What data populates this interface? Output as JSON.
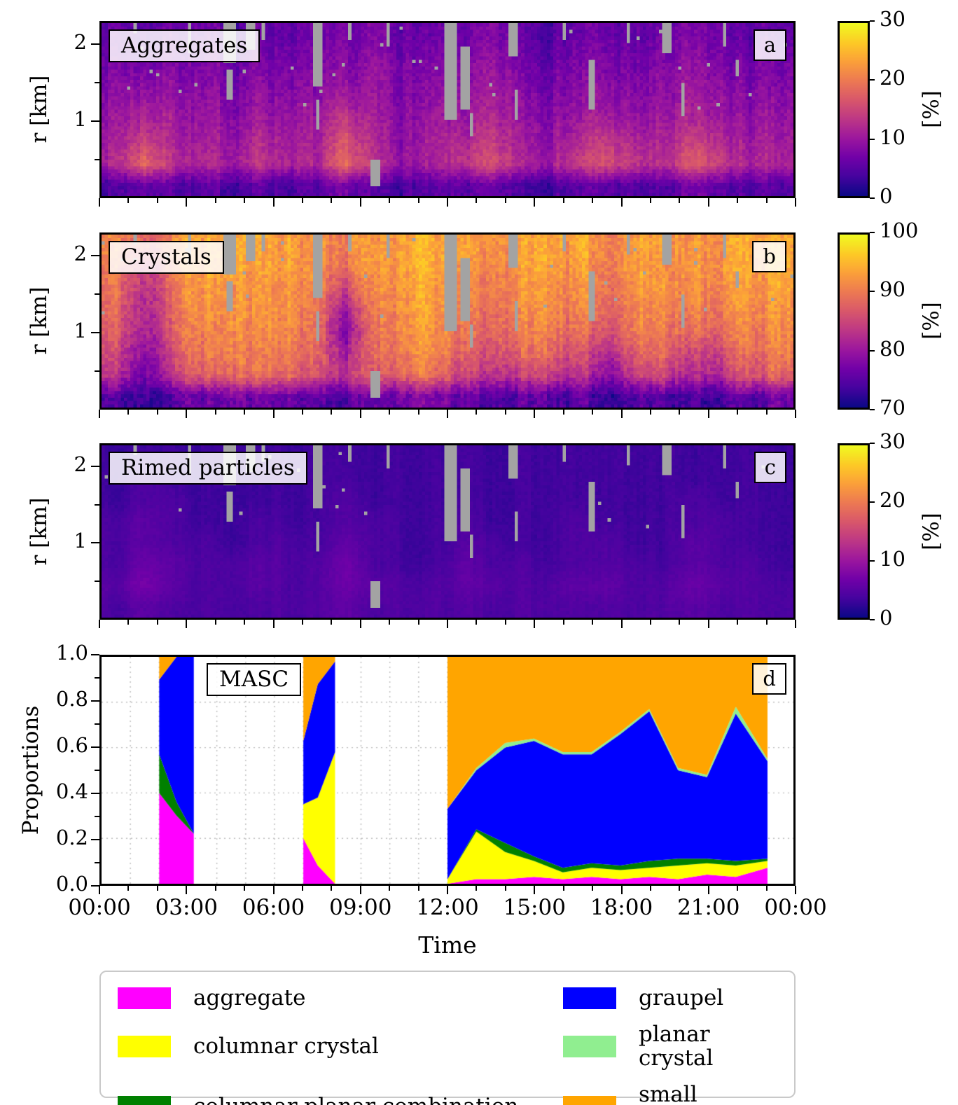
{
  "figure": {
    "background": "#ffffff",
    "nan_color": "#a3a3a3",
    "colormap": {
      "name": "plasma",
      "positions": [
        0,
        0.111,
        0.222,
        0.333,
        0.444,
        0.556,
        0.667,
        0.778,
        0.889,
        1
      ],
      "colors": [
        "#0d0887",
        "#46039f",
        "#7201a8",
        "#9c179e",
        "#bd3786",
        "#d8576b",
        "#ed7953",
        "#fb9f3a",
        "#fdca26",
        "#f0f921"
      ]
    },
    "time_axis": {
      "label": "Time",
      "range_hours": [
        0,
        24
      ],
      "tick_hours": [
        0,
        3,
        6,
        9,
        12,
        15,
        18,
        21,
        24
      ],
      "tick_labels": [
        "00:00",
        "03:00",
        "06:00",
        "09:00",
        "12:00",
        "15:00",
        "18:00",
        "21:00",
        "00:00"
      ]
    },
    "missing_data_patches_hours_km": [
      [
        1.1,
        1.25,
        2.15,
        2.3
      ],
      [
        3.05,
        3.2,
        1.9,
        2.3
      ],
      [
        4.25,
        4.65,
        1.75,
        2.3
      ],
      [
        4.3,
        4.5,
        1.3,
        1.7
      ],
      [
        5.0,
        5.35,
        1.95,
        2.3
      ],
      [
        5.6,
        5.75,
        2.1,
        2.3
      ],
      [
        7.35,
        7.7,
        1.45,
        2.3
      ],
      [
        7.45,
        7.6,
        0.9,
        1.3
      ],
      [
        8.6,
        8.75,
        2.1,
        2.3
      ],
      [
        9.3,
        9.65,
        0.15,
        0.5
      ],
      [
        9.9,
        10.05,
        2.0,
        2.3
      ],
      [
        11.85,
        12.25,
        1.0,
        2.3
      ],
      [
        12.4,
        12.7,
        1.15,
        2.0
      ],
      [
        12.75,
        12.9,
        0.8,
        1.1
      ],
      [
        14.1,
        14.45,
        1.85,
        2.3
      ],
      [
        14.3,
        14.45,
        1.0,
        1.4
      ],
      [
        16.05,
        16.2,
        2.1,
        2.3
      ],
      [
        16.9,
        17.15,
        1.15,
        1.8
      ],
      [
        18.2,
        18.35,
        2.05,
        2.3
      ],
      [
        19.4,
        19.75,
        1.9,
        2.3
      ],
      [
        20.15,
        20.3,
        1.05,
        1.5
      ],
      [
        21.5,
        21.65,
        2.0,
        2.3
      ],
      [
        22.0,
        22.1,
        1.6,
        1.8
      ]
    ]
  },
  "chart_data": [
    {
      "type": "heatmap",
      "panel": "a",
      "title": "Aggregates",
      "ylabel": "r [km]",
      "r_range_km": [
        0,
        2.3
      ],
      "yticks_km": [
        1,
        2
      ],
      "time_range_hours": [
        0,
        24
      ],
      "colorbar": {
        "label": "[%]",
        "vmin": 0,
        "vmax": 30,
        "ticks": [
          0,
          10,
          20,
          30
        ]
      },
      "grid_rows_top_to_bottom_percent": [
        [
          6,
          5,
          7,
          6,
          5,
          6,
          6,
          5,
          6,
          7,
          6,
          5,
          6,
          7,
          6,
          5,
          6,
          6,
          5,
          6,
          7,
          6,
          5,
          5
        ],
        [
          7,
          6,
          8,
          7,
          6,
          7,
          7,
          6,
          7,
          8,
          7,
          6,
          7,
          8,
          7,
          6,
          7,
          7,
          6,
          7,
          8,
          7,
          6,
          6
        ],
        [
          8,
          8,
          9,
          7,
          7,
          8,
          8,
          7,
          8,
          9,
          8,
          7,
          8,
          9,
          8,
          7,
          8,
          8,
          7,
          8,
          9,
          8,
          7,
          7
        ],
        [
          9,
          10,
          10,
          8,
          8,
          9,
          9,
          8,
          10,
          9,
          8,
          8,
          9,
          10,
          9,
          8,
          9,
          9,
          8,
          9,
          10,
          9,
          8,
          8
        ],
        [
          10,
          12,
          11,
          9,
          9,
          10,
          10,
          9,
          13,
          10,
          9,
          9,
          10,
          11,
          10,
          9,
          10,
          11,
          9,
          10,
          11,
          10,
          9,
          9
        ],
        [
          11,
          15,
          12,
          10,
          10,
          12,
          11,
          10,
          16,
          11,
          9,
          10,
          12,
          13,
          11,
          10,
          12,
          14,
          11,
          11,
          14,
          12,
          10,
          10
        ],
        [
          12,
          19,
          13,
          11,
          11,
          13,
          12,
          11,
          18,
          12,
          10,
          10,
          13,
          15,
          12,
          11,
          14,
          16,
          13,
          12,
          17,
          14,
          11,
          11
        ],
        [
          4,
          6,
          5,
          4,
          4,
          5,
          4,
          4,
          6,
          4,
          4,
          4,
          5,
          5,
          4,
          4,
          5,
          5,
          4,
          4,
          6,
          5,
          4,
          4
        ]
      ]
    },
    {
      "type": "heatmap",
      "panel": "b",
      "title": "Crystals",
      "ylabel": "r [km]",
      "r_range_km": [
        0,
        2.3
      ],
      "yticks_km": [
        1,
        2
      ],
      "time_range_hours": [
        0,
        24
      ],
      "colorbar": {
        "label": "[%]",
        "vmin": 70,
        "vmax": 100,
        "ticks": [
          70,
          80,
          90,
          100
        ]
      },
      "grid_rows_top_to_bottom_percent": [
        [
          91,
          87,
          92,
          94,
          93,
          94,
          93,
          92,
          91,
          93,
          94,
          94,
          93,
          92,
          93,
          94,
          93,
          92,
          93,
          94,
          92,
          93,
          94,
          94
        ],
        [
          90,
          84,
          91,
          94,
          93,
          94,
          93,
          92,
          89,
          93,
          94,
          94,
          92,
          91,
          93,
          94,
          92,
          91,
          93,
          93,
          92,
          93,
          94,
          94
        ],
        [
          89,
          82,
          90,
          93,
          92,
          93,
          92,
          91,
          85,
          92,
          93,
          93,
          91,
          90,
          92,
          93,
          91,
          90,
          92,
          93,
          91,
          92,
          93,
          93
        ],
        [
          88,
          81,
          89,
          92,
          92,
          93,
          92,
          90,
          80,
          91,
          93,
          93,
          90,
          89,
          91,
          92,
          90,
          89,
          91,
          92,
          90,
          91,
          92,
          92
        ],
        [
          87,
          80,
          88,
          91,
          91,
          92,
          91,
          89,
          77,
          90,
          92,
          92,
          89,
          88,
          90,
          91,
          88,
          87,
          90,
          91,
          88,
          89,
          91,
          91
        ],
        [
          85,
          78,
          86,
          90,
          90,
          91,
          90,
          88,
          81,
          89,
          91,
          91,
          87,
          86,
          88,
          89,
          85,
          83,
          87,
          89,
          84,
          86,
          89,
          90
        ],
        [
          83,
          76,
          84,
          88,
          88,
          90,
          88,
          86,
          83,
          87,
          89,
          89,
          85,
          83,
          84,
          85,
          82,
          79,
          84,
          86,
          81,
          83,
          87,
          88
        ],
        [
          74,
          72,
          75,
          76,
          76,
          77,
          76,
          75,
          74,
          76,
          77,
          77,
          75,
          74,
          75,
          75,
          74,
          73,
          74,
          75,
          73,
          74,
          75,
          76
        ]
      ]
    },
    {
      "type": "heatmap",
      "panel": "c",
      "title": "Rimed particles",
      "ylabel": "r [km]",
      "r_range_km": [
        0,
        2.3
      ],
      "yticks_km": [
        1,
        2
      ],
      "time_range_hours": [
        0,
        24
      ],
      "colorbar": {
        "label": "[%]",
        "vmin": 0,
        "vmax": 30,
        "ticks": [
          0,
          10,
          20,
          30
        ]
      },
      "grid_rows_top_to_bottom_percent": [
        [
          3,
          3,
          3,
          3,
          3,
          3,
          3,
          3,
          3,
          3,
          3,
          3,
          3,
          3,
          3,
          3,
          3,
          3,
          3,
          3,
          3,
          3,
          3,
          3
        ],
        [
          3,
          4,
          3,
          3,
          3,
          3,
          3,
          3,
          3,
          3,
          3,
          3,
          3,
          3,
          3,
          3,
          3,
          3,
          3,
          3,
          3,
          3,
          3,
          3
        ],
        [
          3,
          4,
          4,
          3,
          3,
          3,
          3,
          3,
          4,
          3,
          3,
          3,
          3,
          3,
          3,
          3,
          3,
          3,
          3,
          3,
          4,
          3,
          3,
          3
        ],
        [
          4,
          5,
          4,
          3,
          3,
          4,
          3,
          3,
          4,
          4,
          3,
          3,
          4,
          3,
          3,
          3,
          4,
          3,
          3,
          3,
          4,
          4,
          3,
          3
        ],
        [
          4,
          5,
          4,
          4,
          3,
          4,
          4,
          3,
          5,
          4,
          3,
          3,
          4,
          4,
          3,
          3,
          4,
          4,
          3,
          3,
          5,
          4,
          3,
          3
        ],
        [
          4,
          6,
          5,
          4,
          4,
          5,
          4,
          4,
          6,
          4,
          3,
          3,
          5,
          4,
          4,
          3,
          4,
          4,
          4,
          3,
          5,
          4,
          4,
          3
        ],
        [
          5,
          7,
          5,
          4,
          4,
          5,
          4,
          4,
          6,
          5,
          4,
          4,
          5,
          5,
          4,
          4,
          5,
          5,
          4,
          4,
          6,
          5,
          4,
          4
        ],
        [
          4,
          5,
          4,
          4,
          4,
          4,
          4,
          4,
          5,
          4,
          4,
          4,
          4,
          4,
          4,
          4,
          4,
          4,
          4,
          4,
          5,
          4,
          4,
          4
        ]
      ]
    },
    {
      "type": "stacked_area",
      "panel": "d",
      "title": "MASC",
      "ylabel": "Proportions",
      "ylim": [
        0,
        1
      ],
      "ytick_labels": [
        "0.0",
        "0.2",
        "0.4",
        "0.6",
        "0.8",
        "1.0"
      ],
      "categories": [
        {
          "key": "aggregate",
          "label": "aggregate",
          "color": "#FF00FF"
        },
        {
          "key": "columnar_crystal",
          "label": "columnar crystal",
          "color": "#FFFF00"
        },
        {
          "key": "columnar_planar_combination",
          "label": "columnar planar combination",
          "color": "#008000"
        },
        {
          "key": "graupel",
          "label": "graupel",
          "color": "#0000FF"
        },
        {
          "key": "planar_crystal",
          "label": "planar crystal",
          "color": "#90EE90"
        },
        {
          "key": "small_particle",
          "label": "small particle",
          "color": "#FFA500"
        }
      ],
      "segments": [
        {
          "hours": [
            2.0,
            2.6,
            3.2
          ],
          "proportions": {
            "aggregate": [
              0.4,
              0.3,
              0.22
            ],
            "columnar_crystal": [
              0,
              0,
              0
            ],
            "columnar_planar_combination": [
              0.17,
              0.06,
              0
            ],
            "graupel": [
              0.33,
              0.64,
              0.78
            ],
            "planar_crystal": [
              0,
              0,
              0
            ],
            "small_particle": [
              0.1,
              0,
              0
            ]
          }
        },
        {
          "hours": [
            7.0,
            7.5,
            8.1
          ],
          "proportions": {
            "aggregate": [
              0.2,
              0.08,
              0
            ],
            "columnar_crystal": [
              0.15,
              0.3,
              0.58
            ],
            "columnar_planar_combination": [
              0,
              0,
              0
            ],
            "graupel": [
              0.28,
              0.5,
              0.4
            ],
            "planar_crystal": [
              0,
              0,
              0
            ],
            "small_particle": [
              0.37,
              0.12,
              0.02
            ]
          }
        },
        {
          "hours": [
            12.0,
            13.0,
            14.0,
            15.0,
            16.0,
            17.0,
            18.0,
            19.0,
            20.0,
            21.0,
            22.0,
            23.1
          ],
          "proportions": {
            "aggregate": [
              0.0,
              0.02,
              0.02,
              0.03,
              0.02,
              0.03,
              0.02,
              0.03,
              0.02,
              0.04,
              0.03,
              0.07
            ],
            "columnar_crystal": [
              0.02,
              0.21,
              0.12,
              0.07,
              0.03,
              0.04,
              0.04,
              0.04,
              0.06,
              0.05,
              0.05,
              0.03
            ],
            "columnar_planar_combination": [
              0.0,
              0.01,
              0.04,
              0.02,
              0.02,
              0.02,
              0.02,
              0.03,
              0.03,
              0.02,
              0.02,
              0.01
            ],
            "graupel": [
              0.31,
              0.26,
              0.42,
              0.51,
              0.5,
              0.48,
              0.58,
              0.66,
              0.39,
              0.36,
              0.65,
              0.43
            ],
            "planar_crystal": [
              0.0,
              0.01,
              0.02,
              0.01,
              0.01,
              0.01,
              0.01,
              0.01,
              0.01,
              0.01,
              0.03,
              0.01
            ],
            "small_particle": [
              0.67,
              0.49,
              0.38,
              0.36,
              0.42,
              0.42,
              0.33,
              0.23,
              0.49,
              0.52,
              0.22,
              0.45
            ]
          }
        }
      ]
    }
  ],
  "legend": {
    "order_indices": [
      0,
      3,
      1,
      4,
      2,
      5
    ]
  }
}
